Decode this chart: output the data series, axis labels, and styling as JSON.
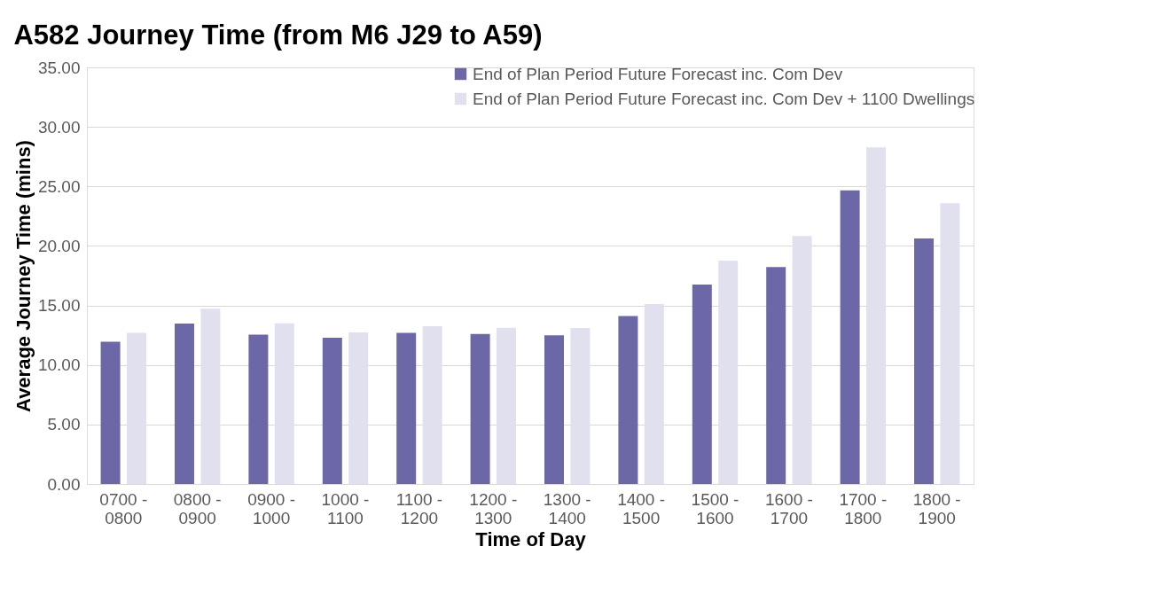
{
  "chart_data": {
    "type": "bar",
    "title": "A582 Journey Time (from M6 J29 to A59)",
    "xlabel": "Time of Day",
    "ylabel": "Average Journey Time (mins)",
    "categories": [
      "0700 - 0800",
      "0800 - 0900",
      "0900 - 1000",
      "1000 - 1100",
      "1100 - 1200",
      "1200 - 1300",
      "1300 - 1400",
      "1400 - 1500",
      "1500 - 1600",
      "1600 - 1700",
      "1700 - 1800",
      "1800 - 1900"
    ],
    "series": [
      {
        "name": "End of Plan Period Future Forecast inc. Com Dev",
        "color": "#6c67a6",
        "values": [
          11.96,
          13.47,
          12.55,
          12.28,
          12.69,
          12.61,
          12.5,
          14.11,
          16.75,
          18.22,
          24.66,
          20.63
        ]
      },
      {
        "name": "End of Plan Period Future Forecast inc. Com Dev + 1100 Dwellings",
        "color": "#e1e0ee",
        "values": [
          12.69,
          14.73,
          13.49,
          12.74,
          13.25,
          13.12,
          13.1,
          15.11,
          18.76,
          20.83,
          28.28,
          23.59
        ]
      }
    ],
    "ylim": [
      0,
      35
    ],
    "yticks": [
      {
        "value": 0,
        "label": "0.00"
      },
      {
        "value": 5,
        "label": "5.00"
      },
      {
        "value": 10,
        "label": "10.00"
      },
      {
        "value": 15,
        "label": "15.00"
      },
      {
        "value": 20,
        "label": "20.00"
      },
      {
        "value": 25,
        "label": "25.00"
      },
      {
        "value": 30,
        "label": "30.00"
      },
      {
        "value": 35,
        "label": "35.00"
      }
    ],
    "grid": "y",
    "legend": "top right"
  }
}
